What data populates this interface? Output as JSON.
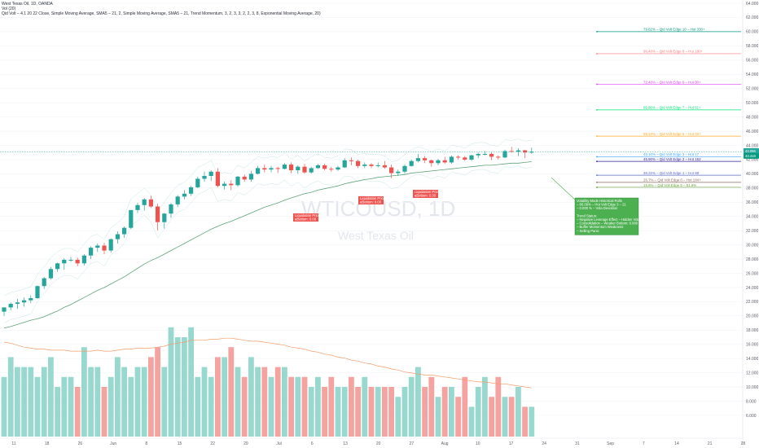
{
  "header": {
    "symbol_line": "West Texas Oil, 1D, OANDA",
    "vol_line": "Vol (20)",
    "indicator_line": "Qid Volt – 4.1 20 22 Close, Simple Moving Average, SMA5 – 21, 2, Simple Moving Average, SMA5 – 21, Trend Momentum, 3, 2, 3, 3, 2, 2, 3, 8, Exponential Moving Average, 20)"
  },
  "watermark": {
    "symbol": "WTICOUSD, 1D",
    "name": "West Texas Oil"
  },
  "colors": {
    "up": "#26a69a",
    "down": "#ef5350",
    "vol_up": "#99d8cf",
    "vol_down": "#f4a3a0",
    "ema": "#5fa37a",
    "vol_ma": "#f39c6b"
  },
  "price_axis": [
    "64.000",
    "62.000",
    "60.000",
    "58.000",
    "56.000",
    "54.000",
    "52.000",
    "50.000",
    "48.000",
    "46.000",
    "44.000",
    "42.000",
    "40.000",
    "38.000",
    "36.000",
    "34.000",
    "32.000",
    "30.000",
    "28.000",
    "26.000",
    "24.000",
    "22.000",
    "20.000",
    "18.000",
    "16.000",
    "14.000",
    "12.000",
    "10.000",
    "8.000",
    "6.000"
  ],
  "time_axis": [
    "11",
    "18",
    "26",
    "Jun",
    "8",
    "15",
    "22",
    "29",
    "Jul",
    "6",
    "13",
    "20",
    "27",
    "Aug",
    "10",
    "17",
    "24",
    "31",
    "Sep",
    "7",
    "14",
    "21",
    "28",
    "Oct",
    "5",
    "12"
  ],
  "price_tags": {
    "last": "43.096",
    "second": "43.418"
  },
  "levels": [
    {
      "label": "79.82% – Qid Volt Edge 10 – Hot 330+",
      "price": 60.0,
      "color": "#089981"
    },
    {
      "label": "96.40% – Qid Volt Edge 8 – Hot 180+",
      "price": 56.9,
      "color": "#f77c80"
    },
    {
      "label": "72.40% – Qid Volt Edge 6 – Hot 90+",
      "price": 52.6,
      "color": "#e040fb"
    },
    {
      "label": "65.80% – Qid Volt Edge 7 – Hot 51+",
      "price": 49.0,
      "color": "#00e676"
    },
    {
      "label": "55.10% – Qid Volt Edge 6 – Hot 32+",
      "price": 45.3,
      "color": "#ffa726"
    },
    {
      "label": "45.10% – Qid Volt Edge 3 – Hot 17",
      "price": 42.4,
      "color": "#42a5f5"
    },
    {
      "label": "45.90% – Qid Volt Edge 2 – Hot 152",
      "price": 41.75,
      "color": "#311b92"
    },
    {
      "label": "38.22% – Qid Volt Edge 1 – Hot 88",
      "price": 39.8,
      "color": "#5c6bc0"
    },
    {
      "label": "26.7% – Qid Volt Edge 6 – Hot 184+",
      "price": 38.8,
      "color": "#8d6e63"
    },
    {
      "label": "15.6% – Qid Volt Edge 5 – 51.6%",
      "price": 38.1,
      "color": "#689f38"
    }
  ],
  "annotations": [
    {
      "lines": [
        "Liquidation Price",
        "aBottom: 0.00"
      ]
    },
    {
      "lines": [
        "Liquidation Price",
        "aBottom: 0.00"
      ]
    },
    {
      "lines": [
        "Liquidation Price",
        "aBottom: 0.00"
      ]
    }
  ],
  "info_box": {
    "lines": [
      "Volatility Mode Historical Rolls",
      "– 80.09% – Hot Volt Edge 3 – 21",
      "– 0.000 % – Vola Deviation",
      "",
      "Trend Status:",
      "– Negative Leverage Effect – Hidden Volatility",
      "– Consolidation – Weaker Bottom: 0.000",
      "– Buffer Momentum Weakness",
      "– Selling Panic"
    ]
  },
  "chart_data": {
    "type": "candlestick",
    "ylim": [
      6,
      64
    ],
    "x": [
      "May 11",
      "May 12",
      "May 13",
      "May 14",
      "May 15",
      "May 18",
      "May 19",
      "May 20",
      "May 21",
      "May 22",
      "May 25",
      "May 26",
      "May 27",
      "May 28",
      "May 29",
      "Jun 1",
      "Jun 2",
      "Jun 3",
      "Jun 4",
      "Jun 5",
      "Jun 8",
      "Jun 9",
      "Jun 10",
      "Jun 11",
      "Jun 12",
      "Jun 15",
      "Jun 16",
      "Jun 17",
      "Jun 18",
      "Jun 19",
      "Jun 22",
      "Jun 23",
      "Jun 24",
      "Jun 25",
      "Jun 26",
      "Jun 29",
      "Jun 30",
      "Jul 1",
      "Jul 2",
      "Jul 3",
      "Jul 6",
      "Jul 7",
      "Jul 8",
      "Jul 9",
      "Jul 10",
      "Jul 13",
      "Jul 14",
      "Jul 15",
      "Jul 16",
      "Jul 17",
      "Jul 20",
      "Jul 21",
      "Jul 22",
      "Jul 23",
      "Jul 24",
      "Jul 27",
      "Jul 28",
      "Jul 29",
      "Jul 30",
      "Jul 31",
      "Aug 3",
      "Aug 4",
      "Aug 5",
      "Aug 6",
      "Aug 7",
      "Aug 10",
      "Aug 11",
      "Aug 12",
      "Aug 13",
      "Aug 14",
      "Aug 17",
      "Aug 18",
      "Aug 19",
      "Aug 20",
      "Aug 21",
      "Aug 24",
      "Aug 25",
      "Aug 26",
      "Aug 27",
      "Aug 28"
    ],
    "ohlc": [
      [
        20.6,
        21.2,
        20.0,
        21.2
      ],
      [
        21.2,
        21.9,
        20.8,
        21.7
      ],
      [
        21.7,
        22.4,
        21.0,
        21.9
      ],
      [
        21.9,
        22.6,
        21.3,
        22.2
      ],
      [
        22.2,
        22.9,
        21.8,
        22.5
      ],
      [
        22.5,
        24.3,
        22.4,
        24.2
      ],
      [
        24.2,
        25.5,
        23.8,
        25.3
      ],
      [
        25.3,
        26.9,
        25.1,
        26.6
      ],
      [
        26.6,
        27.5,
        26.2,
        27.4
      ],
      [
        27.4,
        28.1,
        26.5,
        27.9
      ],
      [
        27.9,
        28.3,
        27.6,
        27.9
      ],
      [
        27.9,
        28.2,
        27.0,
        27.4
      ],
      [
        27.4,
        28.7,
        27.1,
        28.5
      ],
      [
        28.5,
        29.8,
        28.0,
        29.6
      ],
      [
        29.6,
        30.2,
        29.0,
        29.9
      ],
      [
        29.9,
        30.3,
        28.7,
        29.2
      ],
      [
        29.2,
        30.9,
        28.9,
        30.8
      ],
      [
        30.8,
        31.9,
        30.2,
        31.5
      ],
      [
        31.5,
        32.6,
        31.0,
        32.4
      ],
      [
        32.4,
        34.9,
        32.2,
        34.9
      ],
      [
        34.9,
        35.9,
        34.5,
        35.6
      ],
      [
        35.6,
        36.6,
        34.8,
        36.4
      ],
      [
        36.4,
        36.9,
        35.2,
        35.4
      ],
      [
        35.4,
        35.8,
        32.0,
        33.2
      ],
      [
        33.2,
        34.5,
        32.3,
        34.4
      ],
      [
        34.4,
        35.9,
        33.8,
        35.7
      ],
      [
        35.7,
        37.0,
        35.3,
        36.8
      ],
      [
        36.8,
        37.7,
        36.4,
        37.2
      ],
      [
        37.2,
        38.3,
        36.9,
        38.1
      ],
      [
        38.1,
        39.6,
        38.0,
        39.3
      ],
      [
        39.3,
        40.3,
        38.9,
        39.7
      ],
      [
        39.7,
        40.5,
        39.0,
        40.3
      ],
      [
        40.3,
        40.8,
        38.1,
        38.3
      ],
      [
        38.3,
        38.9,
        37.8,
        38.6
      ],
      [
        38.6,
        39.1,
        37.7,
        38.4
      ],
      [
        38.4,
        39.7,
        38.2,
        39.6
      ],
      [
        39.6,
        39.9,
        38.9,
        39.2
      ],
      [
        39.2,
        40.4,
        38.9,
        40.0
      ],
      [
        40.0,
        41.1,
        39.9,
        40.8
      ],
      [
        40.8,
        41.3,
        40.2,
        40.6
      ],
      [
        40.6,
        41.1,
        40.2,
        40.8
      ],
      [
        40.8,
        41.0,
        40.1,
        40.7
      ],
      [
        40.7,
        41.5,
        40.6,
        41.3
      ],
      [
        41.3,
        41.6,
        40.1,
        40.5
      ],
      [
        40.5,
        41.2,
        40.0,
        41.0
      ],
      [
        41.0,
        41.4,
        40.0,
        40.2
      ],
      [
        40.2,
        41.0,
        40.0,
        40.8
      ],
      [
        40.8,
        41.4,
        40.7,
        41.2
      ],
      [
        41.2,
        41.4,
        40.5,
        40.7
      ],
      [
        40.7,
        41.0,
        40.3,
        40.6
      ],
      [
        40.6,
        41.1,
        40.4,
        40.9
      ],
      [
        40.9,
        42.2,
        40.8,
        41.9
      ],
      [
        41.9,
        42.3,
        41.2,
        41.8
      ],
      [
        41.8,
        42.0,
        40.8,
        41.1
      ],
      [
        41.1,
        41.6,
        40.8,
        41.3
      ],
      [
        41.3,
        41.5,
        40.8,
        41.1
      ],
      [
        41.1,
        41.6,
        40.9,
        41.2
      ],
      [
        41.2,
        41.8,
        40.7,
        40.9
      ],
      [
        40.9,
        41.3,
        39.4,
        40.1
      ],
      [
        40.1,
        40.6,
        39.7,
        40.3
      ],
      [
        40.3,
        41.3,
        40.0,
        41.1
      ],
      [
        41.1,
        42.0,
        41.0,
        41.8
      ],
      [
        41.8,
        42.8,
        41.6,
        42.2
      ],
      [
        42.2,
        42.5,
        41.5,
        41.9
      ],
      [
        41.9,
        42.0,
        41.0,
        41.5
      ],
      [
        41.5,
        42.1,
        41.2,
        41.9
      ],
      [
        41.9,
        42.4,
        41.4,
        41.6
      ],
      [
        41.6,
        42.6,
        41.4,
        42.4
      ],
      [
        42.4,
        42.6,
        42.0,
        42.3
      ],
      [
        42.3,
        42.5,
        41.8,
        42.0
      ],
      [
        42.0,
        42.7,
        41.8,
        42.6
      ],
      [
        42.6,
        43.0,
        42.2,
        42.8
      ],
      [
        42.8,
        43.2,
        42.6,
        42.8
      ],
      [
        42.8,
        43.0,
        41.9,
        42.4
      ],
      [
        42.4,
        42.6,
        42.0,
        42.3
      ],
      [
        42.3,
        43.4,
        42.2,
        43.2
      ],
      [
        43.2,
        43.8,
        43.0,
        43.1
      ],
      [
        43.1,
        43.6,
        42.5,
        43.3
      ],
      [
        43.3,
        43.4,
        42.2,
        43.0
      ],
      [
        43.0,
        43.7,
        42.8,
        43.1
      ]
    ],
    "volume": [
      6,
      8,
      7,
      7,
      7,
      6,
      7,
      8,
      5,
      6,
      6,
      5,
      9,
      7,
      7,
      5,
      6,
      8,
      7,
      6,
      7,
      7,
      8,
      9,
      7,
      11,
      10,
      10,
      11,
      6,
      7,
      6,
      8,
      8,
      9,
      7,
      6,
      8,
      7,
      7,
      6,
      7,
      7,
      6,
      6,
      6,
      5,
      6,
      5,
      6,
      5,
      5,
      6,
      5,
      6,
      5,
      5,
      5,
      5,
      4,
      5,
      6,
      7,
      5,
      6,
      4,
      5,
      5,
      4,
      6,
      3,
      5,
      6,
      4,
      6,
      4,
      4,
      5,
      3,
      3
    ],
    "ema": [
      18.3,
      18.5,
      18.8,
      19.1,
      19.4,
      19.6,
      19.9,
      20.3,
      20.7,
      21.2,
      21.6,
      22.1,
      22.6,
      23.1,
      23.6,
      24.0,
      24.5,
      25.0,
      25.5,
      26.1,
      26.7,
      27.3,
      27.8,
      28.2,
      28.7,
      29.2,
      29.7,
      30.2,
      30.7,
      31.2,
      31.7,
      32.2,
      32.6,
      33.0,
      33.3,
      33.7,
      34.1,
      34.5,
      34.9,
      35.3,
      35.6,
      35.9,
      36.3,
      36.6,
      36.9,
      37.2,
      37.4,
      37.7,
      37.9,
      38.1,
      38.3,
      38.6,
      38.8,
      39.0,
      39.2,
      39.3,
      39.5,
      39.6,
      39.7,
      39.8,
      39.9,
      40.1,
      40.2,
      40.3,
      40.4,
      40.5,
      40.6,
      40.7,
      40.8,
      40.9,
      41.0,
      41.1,
      41.2,
      41.2,
      41.3,
      41.4,
      41.5,
      41.5,
      41.6,
      41.7
    ],
    "vol_ma": [
      9.5,
      9.4,
      9.2,
      9.0,
      8.9,
      8.8,
      8.8,
      8.7,
      8.7,
      8.7,
      8.6,
      8.6,
      8.6,
      8.6,
      8.7,
      8.6,
      8.6,
      8.7,
      8.8,
      8.8,
      8.9,
      8.9,
      8.9,
      9.0,
      9.1,
      9.3,
      9.4,
      9.5,
      9.7,
      9.7,
      9.7,
      9.8,
      9.8,
      9.9,
      9.9,
      9.8,
      9.7,
      9.6,
      9.6,
      9.5,
      9.4,
      9.3,
      9.2,
      9.0,
      8.9,
      8.8,
      8.6,
      8.5,
      8.3,
      8.2,
      8.0,
      7.9,
      7.7,
      7.6,
      7.4,
      7.3,
      7.1,
      7.0,
      6.8,
      6.7,
      6.5,
      6.4,
      6.3,
      6.2,
      6.2,
      6.1,
      6.0,
      5.9,
      5.8,
      5.7,
      5.6,
      5.5,
      5.5,
      5.4,
      5.3,
      5.3,
      5.2,
      5.1,
      5.0,
      4.9
    ]
  }
}
